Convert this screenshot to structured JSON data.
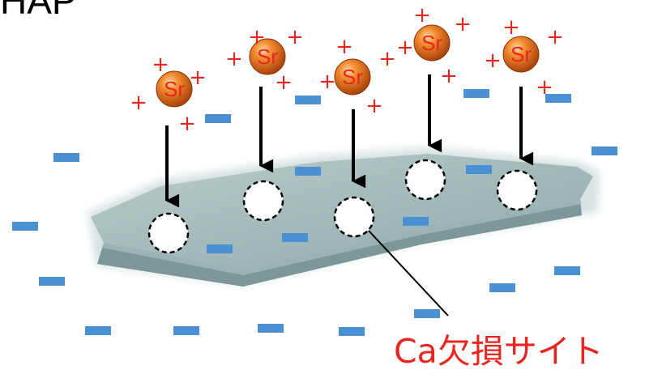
{
  "title": "HAP",
  "ion_label": "Sr",
  "charge_glyph": "+",
  "callout_label": "Ca欠損サイト",
  "colors": {
    "charge": "#e8261f",
    "negative_charge": "#4a90d4",
    "arrow": "#000000",
    "ion_fill": "#e06a16",
    "ion_text": "#e8261f",
    "crystal": "#9fb6b6"
  }
}
